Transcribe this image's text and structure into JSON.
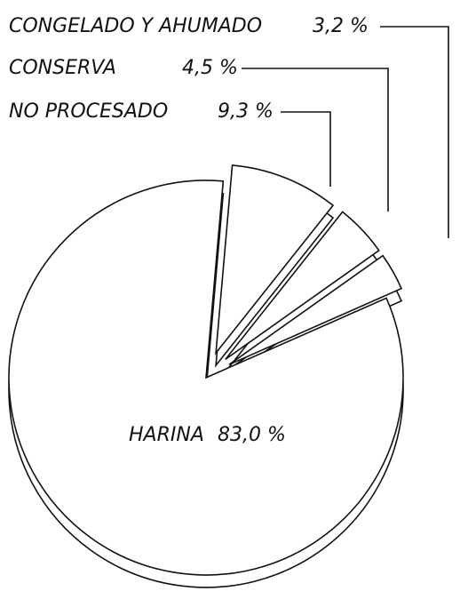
{
  "chart_data": {
    "type": "pie",
    "categories": [
      "NO PROCESADO",
      "CONSERVA",
      "CONGELADO Y AHUMADO",
      "HARINA"
    ],
    "values": [
      9.3,
      4.5,
      3.2,
      83.0
    ],
    "value_labels": [
      "9,3 %",
      "4,5 %",
      "3,2 %",
      "83,0 %"
    ]
  }
}
